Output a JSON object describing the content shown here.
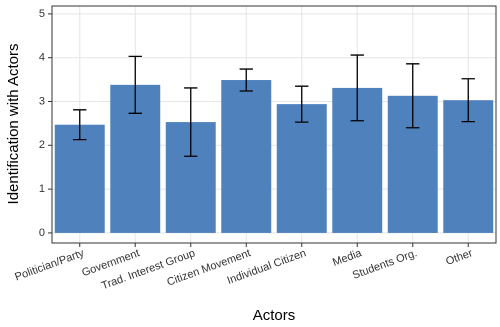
{
  "chart_data": {
    "type": "bar",
    "x_label": "Actors",
    "y_label": "Identification with Actors",
    "categories": [
      "Politician/Party",
      "Government",
      "Trad. Interest Group",
      "Citizen Movement",
      "Individual Citizen",
      "Media",
      "Students Org.",
      "Other"
    ],
    "values": [
      2.47,
      3.38,
      2.53,
      3.49,
      2.94,
      3.31,
      3.13,
      3.03
    ],
    "errors": [
      0.34,
      0.65,
      0.78,
      0.25,
      0.41,
      0.75,
      0.73,
      0.49
    ],
    "color": "#4f81bd",
    "ylim": [
      -0.23,
      5.18
    ],
    "yticks": [
      0,
      1,
      2,
      3,
      4,
      5
    ],
    "grid": true
  }
}
